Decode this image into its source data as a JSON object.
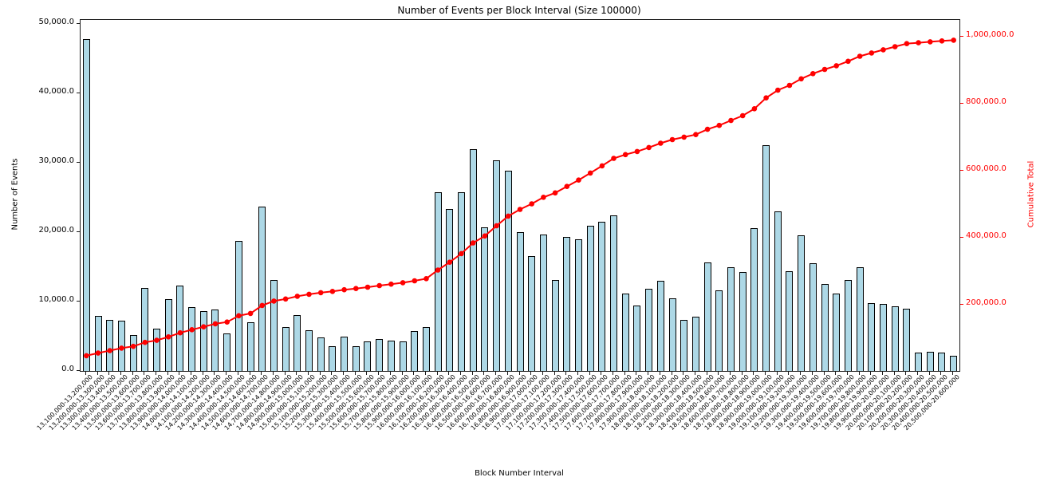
{
  "chart_data": {
    "type": "bar",
    "title": "Number of Events per Block Interval (Size 100000)",
    "xlabel": "Block Number Interval",
    "ylabel": "Number of Events",
    "ylabel_right": "Cumulative Total",
    "grid": false,
    "legend_position": "none",
    "bar_color": "#ADD8E6",
    "bar_edge_color": "#000000",
    "line_color": "#FF0000",
    "left_axis": {
      "ticks": [
        0,
        10000,
        20000,
        30000,
        40000,
        50000
      ],
      "tick_labels": [
        "0.0",
        "10,000.0",
        "20,000.0",
        "30,000.0",
        "40,000.0",
        "50,000.0"
      ],
      "ylim": [
        0,
        50600
      ]
    },
    "right_axis": {
      "ticks": [
        200000,
        400000,
        600000,
        800000,
        1000000
      ],
      "tick_labels": [
        "200,000.0",
        "400,000.0",
        "600,000.0",
        "800,000.0",
        "1,000,000.0"
      ],
      "ylim": [
        0,
        1050000
      ]
    },
    "categories": [
      "13,100,000-13,200,000",
      "13,200,000-13,300,000",
      "13,300,000-13,400,000",
      "13,400,000-13,500,000",
      "13,500,000-13,600,000",
      "13,600,000-13,700,000",
      "13,700,000-13,800,000",
      "13,800,000-13,900,000",
      "13,900,000-14,000,000",
      "14,000,000-14,100,000",
      "14,100,000-14,200,000",
      "14,200,000-14,300,000",
      "14,300,000-14,400,000",
      "14,400,000-14,500,000",
      "14,500,000-14,600,000",
      "14,600,000-14,700,000",
      "14,700,000-14,800,000",
      "14,800,000-14,900,000",
      "14,900,000-15,000,000",
      "15,000,000-15,100,000",
      "15,100,000-15,200,000",
      "15,200,000-15,300,000",
      "15,300,000-15,400,000",
      "15,400,000-15,500,000",
      "15,500,000-15,600,000",
      "15,600,000-15,700,000",
      "15,700,000-15,800,000",
      "15,800,000-15,900,000",
      "15,900,000-16,000,000",
      "16,000,000-16,100,000",
      "16,100,000-16,200,000",
      "16,200,000-16,300,000",
      "16,300,000-16,400,000",
      "16,400,000-16,500,000",
      "16,500,000-16,600,000",
      "16,600,000-16,700,000",
      "16,700,000-16,800,000",
      "16,800,000-16,900,000",
      "16,900,000-17,000,000",
      "17,000,000-17,100,000",
      "17,100,000-17,200,000",
      "17,200,000-17,300,000",
      "17,300,000-17,400,000",
      "17,400,000-17,500,000",
      "17,500,000-17,600,000",
      "17,600,000-17,700,000",
      "17,700,000-17,800,000",
      "17,800,000-17,900,000",
      "17,900,000-18,000,000",
      "18,000,000-18,100,000",
      "18,100,000-18,200,000",
      "18,200,000-18,300,000",
      "18,300,000-18,400,000",
      "18,400,000-18,500,000",
      "18,500,000-18,600,000",
      "18,600,000-18,700,000",
      "18,700,000-18,800,000",
      "18,800,000-18,900,000",
      "18,900,000-19,000,000",
      "19,000,000-19,100,000",
      "19,100,000-19,200,000",
      "19,200,000-19,300,000",
      "19,300,000-19,400,000",
      "19,400,000-19,500,000",
      "19,500,000-19,600,000",
      "19,600,000-19,700,000",
      "19,700,000-19,800,000",
      "19,800,000-19,900,000",
      "19,900,000-20,000,000",
      "20,000,000-20,100,000",
      "20,100,000-20,200,000",
      "20,200,000-20,300,000",
      "20,300,000-20,400,000",
      "20,400,000-20,500,000",
      "20,500,000-20,600,000"
    ],
    "series": [
      {
        "name": "Number of Events",
        "type": "bar",
        "axis": "left",
        "values": [
          47800,
          7900,
          7400,
          7300,
          5200,
          12000,
          6100,
          10300,
          12300,
          9250,
          8600,
          8900,
          5400,
          18700,
          7000,
          23700,
          13100,
          6300,
          8100,
          5900,
          4800,
          3600,
          5000,
          3600,
          4200,
          4600,
          4400,
          4300,
          5700,
          6300,
          25800,
          23300,
          25700,
          32000,
          20700,
          30400,
          28900,
          20000,
          16600,
          19600,
          13100,
          19300,
          19000,
          20900,
          21500,
          22400,
          11100,
          9400,
          11800,
          13000,
          10500,
          7400,
          7800,
          15600,
          11600,
          14900,
          14300,
          20600,
          32500,
          23000,
          14400,
          19500,
          15500,
          12500,
          11100,
          13100,
          15000,
          9800,
          9600,
          9300,
          9000,
          2700,
          2800,
          2600,
          2200
        ]
      },
      {
        "name": "Cumulative Total",
        "type": "line",
        "axis": "right",
        "values": [
          47800,
          55700,
          63100,
          70400,
          75600,
          87600,
          93700,
          104000,
          116300,
          125550,
          134150,
          143050,
          148450,
          167150,
          174150,
          197850,
          210950,
          217250,
          225350,
          231250,
          236050,
          239650,
          244650,
          248250,
          252450,
          257050,
          261450,
          265750,
          271450,
          277750,
          303550,
          326850,
          352550,
          384550,
          405250,
          435650,
          464550,
          484550,
          501150,
          520750,
          533850,
          553150,
          572150,
          593050,
          614550,
          636950,
          648050,
          657450,
          669250,
          682250,
          692750,
          700150,
          707950,
          723550,
          735150,
          750050,
          764350,
          784950,
          817450,
          840450,
          854850,
          874350,
          889850,
          902350,
          913450,
          926550,
          941550,
          951350,
          960950,
          970250,
          979250,
          981950,
          984750,
          987350,
          989550
        ]
      }
    ]
  }
}
